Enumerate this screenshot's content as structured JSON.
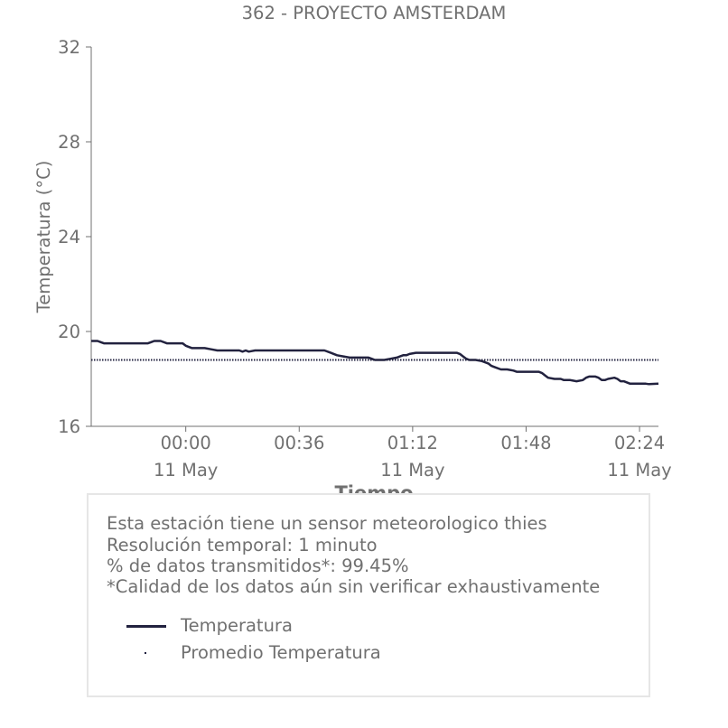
{
  "chart_data": {
    "type": "line",
    "title": "362 - PROYECTO AMSTERDAM",
    "xlabel": "Tiempo",
    "ylabel": "Temperatura (°C)",
    "ylim": [
      16,
      32
    ],
    "yticks": [
      16,
      20,
      24,
      28,
      32
    ],
    "xlim_minutes": [
      -30,
      150
    ],
    "xticks": [
      {
        "minute": 0,
        "time": "00:00",
        "date": "11 May"
      },
      {
        "minute": 36,
        "time": "00:36",
        "date": ""
      },
      {
        "minute": 72,
        "time": "01:12",
        "date": "11 May"
      },
      {
        "minute": 108,
        "time": "01:48",
        "date": ""
      },
      {
        "minute": 144,
        "time": "02:24",
        "date": "11 May"
      }
    ],
    "grid": false,
    "legend_position": "below",
    "colors": {
      "temperature": "#22223f",
      "average": "#22223f",
      "text": "#707070"
    },
    "series": [
      {
        "name": "Temperatura",
        "style": "solid",
        "x": [
          -30,
          -29,
          -28,
          -27,
          -26,
          -24,
          -20,
          -16,
          -13,
          -12,
          -11,
          -10,
          -9,
          -8,
          -6,
          -4,
          -3,
          -2,
          -1,
          0,
          2,
          4,
          6,
          8,
          10,
          12,
          15,
          16,
          17,
          18,
          19,
          20,
          22,
          25,
          26,
          28,
          31,
          33,
          36,
          40,
          44,
          46,
          48,
          50,
          52,
          56,
          58,
          59,
          60,
          61,
          63,
          65,
          67,
          68,
          69,
          70,
          71,
          73,
          76,
          80,
          84,
          86,
          87,
          88,
          89,
          90,
          92,
          94,
          96,
          97,
          98,
          100,
          102,
          104,
          105,
          106,
          108,
          110,
          112,
          113,
          114,
          115,
          117,
          118,
          119,
          120,
          122,
          124,
          126,
          127,
          128,
          130,
          131,
          132,
          133,
          134,
          136,
          137,
          138,
          139,
          141,
          144,
          146,
          147,
          150
        ],
        "values": [
          19.6,
          19.6,
          19.6,
          19.55,
          19.5,
          19.5,
          19.5,
          19.5,
          19.5,
          19.5,
          19.55,
          19.6,
          19.6,
          19.6,
          19.5,
          19.5,
          19.5,
          19.5,
          19.5,
          19.4,
          19.3,
          19.3,
          19.3,
          19.25,
          19.2,
          19.2,
          19.2,
          19.2,
          19.2,
          19.15,
          19.2,
          19.15,
          19.2,
          19.2,
          19.2,
          19.2,
          19.2,
          19.2,
          19.2,
          19.2,
          19.2,
          19.1,
          19.0,
          18.95,
          18.9,
          18.9,
          18.9,
          18.85,
          18.8,
          18.8,
          18.8,
          18.85,
          18.9,
          18.95,
          19.0,
          19.0,
          19.05,
          19.1,
          19.1,
          19.1,
          19.1,
          19.1,
          19.05,
          18.95,
          18.85,
          18.8,
          18.8,
          18.75,
          18.65,
          18.55,
          18.5,
          18.4,
          18.4,
          18.35,
          18.3,
          18.3,
          18.3,
          18.3,
          18.3,
          18.25,
          18.15,
          18.05,
          18.0,
          18.0,
          18.0,
          17.95,
          17.95,
          17.9,
          17.95,
          18.05,
          18.1,
          18.1,
          18.05,
          17.95,
          17.95,
          18.0,
          18.05,
          18.0,
          17.9,
          17.9,
          17.8,
          17.8,
          17.8,
          17.78,
          17.8
        ]
      },
      {
        "name": "Promedio Temperatura",
        "style": "dotted",
        "constant": 18.8
      }
    ]
  },
  "info": {
    "lines": [
      "Esta estación tiene un sensor meteorologico thies",
      "Resolución temporal: 1 minuto",
      "% de datos transmitidos*: 99.45%",
      "*Calidad de los datos aún sin verificar exhaustivamente"
    ]
  }
}
